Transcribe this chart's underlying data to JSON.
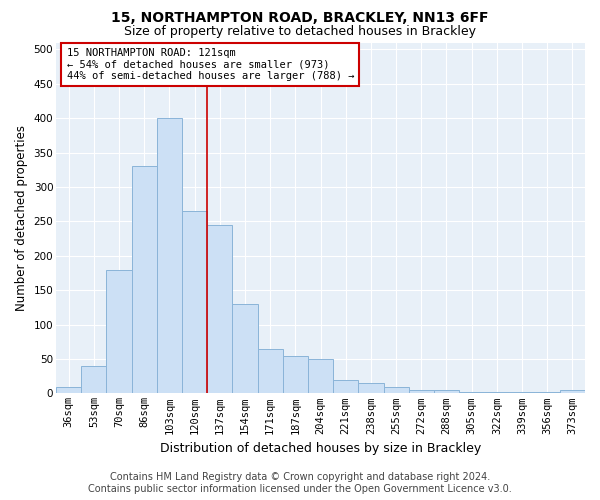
{
  "title": "15, NORTHAMPTON ROAD, BRACKLEY, NN13 6FF",
  "subtitle": "Size of property relative to detached houses in Brackley",
  "xlabel": "Distribution of detached houses by size in Brackley",
  "ylabel": "Number of detached properties",
  "categories": [
    "36sqm",
    "53sqm",
    "70sqm",
    "86sqm",
    "103sqm",
    "120sqm",
    "137sqm",
    "154sqm",
    "171sqm",
    "187sqm",
    "204sqm",
    "221sqm",
    "238sqm",
    "255sqm",
    "272sqm",
    "288sqm",
    "305sqm",
    "322sqm",
    "339sqm",
    "356sqm",
    "373sqm"
  ],
  "values": [
    10,
    40,
    180,
    330,
    400,
    265,
    245,
    130,
    65,
    55,
    50,
    20,
    15,
    10,
    5,
    5,
    2,
    2,
    2,
    2,
    5
  ],
  "bar_color": "#cce0f5",
  "bar_edge_color": "#8ab4d8",
  "highlight_index": 5,
  "highlight_color": "#cc0000",
  "annotation_text": "15 NORTHAMPTON ROAD: 121sqm\n← 54% of detached houses are smaller (973)\n44% of semi-detached houses are larger (788) →",
  "annotation_box_color": "#ffffff",
  "annotation_box_edge_color": "#cc0000",
  "ylim": [
    0,
    510
  ],
  "yticks": [
    0,
    50,
    100,
    150,
    200,
    250,
    300,
    350,
    400,
    450,
    500
  ],
  "footer_line1": "Contains HM Land Registry data © Crown copyright and database right 2024.",
  "footer_line2": "Contains public sector information licensed under the Open Government Licence v3.0.",
  "bg_color": "#ffffff",
  "plot_bg_color": "#e8f0f8",
  "title_fontsize": 10,
  "subtitle_fontsize": 9,
  "axis_label_fontsize": 8.5,
  "tick_fontsize": 7.5,
  "footer_fontsize": 7
}
